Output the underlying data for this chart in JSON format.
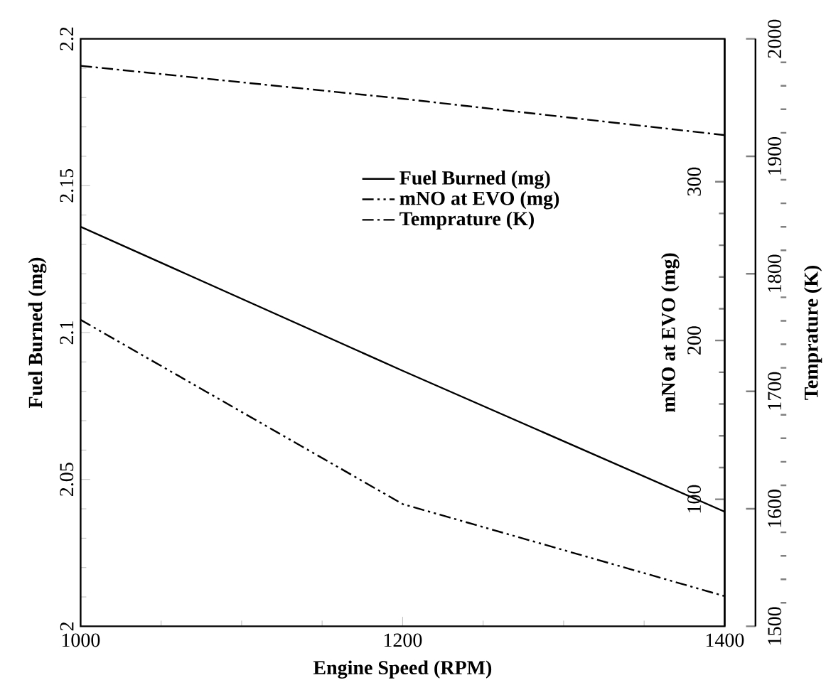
{
  "chart_data": {
    "type": "line",
    "xlabel": "Engine Speed (RPM)",
    "ylabel": "Fuel Burned (mg)",
    "y2label": "mNO at EVO (mg)",
    "y3label": "Temprature (K)",
    "x": [
      1000,
      1200,
      1400
    ],
    "xlim": [
      1000,
      1400
    ],
    "xticks": [
      1000,
      1200,
      1400
    ],
    "ylim": [
      2,
      2.2
    ],
    "yticks": [
      2,
      2.05,
      2.1,
      2.15,
      2.2
    ],
    "y2lim": [
      20,
      390
    ],
    "y2ticks": [
      100,
      200,
      300
    ],
    "y3lim": [
      1500,
      2000
    ],
    "y3ticks": [
      1500,
      1600,
      1700,
      1800,
      1900,
      2000
    ],
    "legend": "top right",
    "series": [
      {
        "name": "Fuel Burned (mg)",
        "color": "#000000",
        "line_style": "solid",
        "values": [
          2.136,
          2.087,
          2.039
        ]
      },
      {
        "name": "mNO at EVO (mg)",
        "color": "#000000",
        "line_style": "dashdotdot",
        "axis": "y2",
        "values": [
          213,
          97,
          39
        ]
      },
      {
        "name": "Temprature (K)",
        "color": "#000000",
        "line_style": "dashdot",
        "axis": "y3",
        "values": [
          1977,
          1949,
          1918
        ]
      }
    ]
  }
}
